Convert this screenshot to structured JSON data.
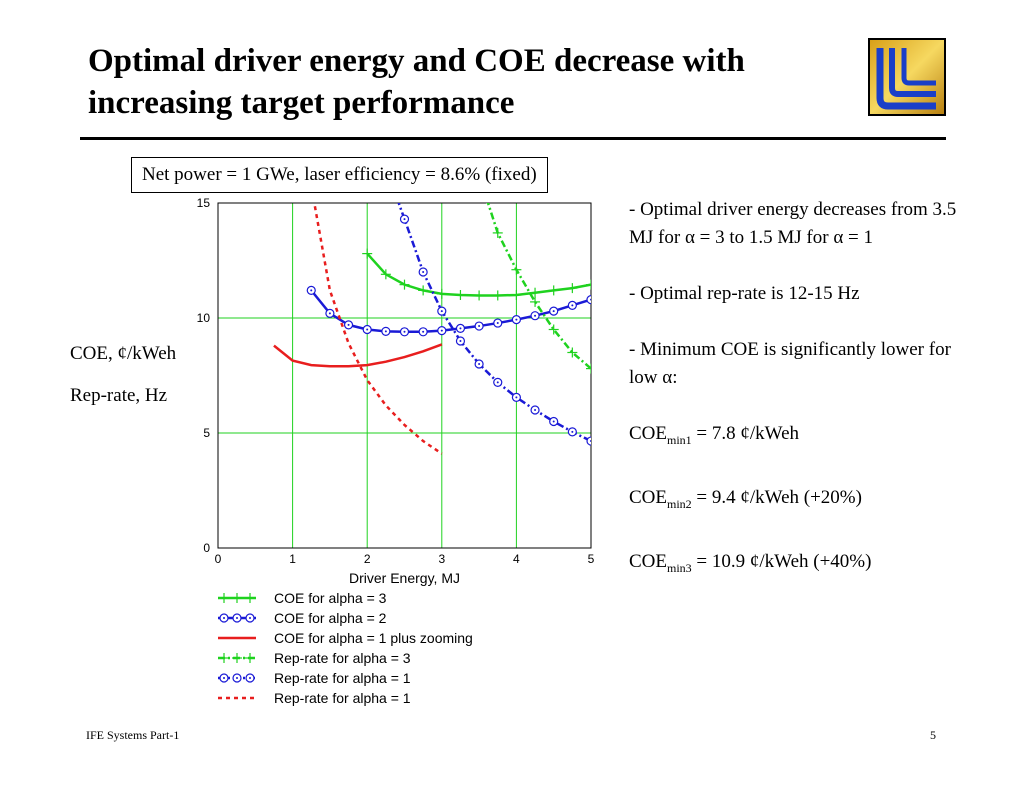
{
  "slide": {
    "title": "Optimal driver energy and COE decrease with increasing target performance",
    "subtitle": "Net power = 1 GWe, laser efficiency = 8.6% (fixed)",
    "ylabel_coe": "COE, ¢/kWeh",
    "ylabel_rep": "Rep-rate, Hz",
    "footer_left": "IFE Systems Part-1",
    "page_number": "5",
    "logo_icon": "llnl-logo-icon",
    "notes": {
      "bullet1": "- Optimal driver energy decreases from 3.5 MJ for α = 3 to 1.5 MJ for α = 1",
      "bullet2": "- Optimal rep-rate is 12-15 Hz",
      "bullet3": "- Minimum COE is significantly lower for low α:",
      "coe1": {
        "label": "COE",
        "sub": "min1",
        "value": " = 7.8 ¢/kWeh"
      },
      "coe2": {
        "label": "COE",
        "sub": "min2",
        "value": " = 9.4 ¢/kWeh (+20%)"
      },
      "coe3": {
        "label": "COE",
        "sub": "min3",
        "value": " = 10.9 ¢/kWeh (+40%)"
      }
    }
  },
  "chart_data": {
    "type": "line",
    "xlabel": "Driver Energy, MJ",
    "ylabel": "",
    "xlim": [
      0,
      5
    ],
    "ylim": [
      0,
      15
    ],
    "xticks": [
      "0",
      "1",
      "2",
      "3",
      "4",
      "5"
    ],
    "yticks": [
      "0",
      "5",
      "10",
      "15"
    ],
    "grid": true,
    "legend_position": "below",
    "series": [
      {
        "name": "COE for alpha = 3",
        "color": "#1fd21f",
        "dash": "solid",
        "marker": "plus",
        "x": [
          2.0,
          2.25,
          2.5,
          2.75,
          3.0,
          3.25,
          3.5,
          3.75,
          4.0,
          4.25,
          4.5,
          4.75,
          5.0
        ],
        "y": [
          12.8,
          11.9,
          11.45,
          11.2,
          11.05,
          11.0,
          10.98,
          10.98,
          11.0,
          11.1,
          11.2,
          11.3,
          11.45
        ]
      },
      {
        "name": "COE for alpha = 2",
        "color": "#1a1ad6",
        "dash": "solid",
        "marker": "circle",
        "x": [
          1.25,
          1.5,
          1.75,
          2.0,
          2.25,
          2.5,
          2.75,
          3.0,
          3.25,
          3.5,
          3.75,
          4.0,
          4.25,
          4.5,
          4.75,
          5.0
        ],
        "y": [
          11.2,
          10.2,
          9.7,
          9.5,
          9.42,
          9.4,
          9.4,
          9.45,
          9.55,
          9.65,
          9.78,
          9.93,
          10.1,
          10.3,
          10.55,
          10.8
        ]
      },
      {
        "name": "COE for alpha = 1 plus zooming",
        "color": "#e81e1e",
        "dash": "solid",
        "marker": "none",
        "x": [
          0.75,
          1.0,
          1.25,
          1.5,
          1.75,
          2.0,
          2.25,
          2.5,
          2.75,
          3.0
        ],
        "y": [
          8.8,
          8.15,
          7.95,
          7.9,
          7.9,
          7.95,
          8.1,
          8.3,
          8.55,
          8.85
        ]
      },
      {
        "name": "Rep-rate for alpha = 3",
        "color": "#1fd21f",
        "dash": "dashdot",
        "marker": "plus",
        "x": [
          3.6,
          3.75,
          4.0,
          4.25,
          4.5,
          4.75,
          5.0
        ],
        "y": [
          15.2,
          13.7,
          12.1,
          10.7,
          9.5,
          8.5,
          7.8
        ]
      },
      {
        "name": "Rep-rate for alpha = 1",
        "color": "#1a1ad6",
        "dash": "dashdot",
        "marker": "circle",
        "x": [
          2.4,
          2.5,
          2.75,
          3.0,
          3.25,
          3.5,
          3.75,
          4.0,
          4.25,
          4.5,
          4.75,
          5.0
        ],
        "y": [
          15.2,
          14.3,
          12.0,
          10.3,
          9.0,
          8.0,
          7.2,
          6.55,
          6.0,
          5.5,
          5.05,
          4.65
        ]
      },
      {
        "name": "Rep-rate for alpha = 1",
        "color": "#e81e1e",
        "dash": "dotted",
        "marker": "none",
        "x": [
          1.28,
          1.5,
          1.75,
          2.0,
          2.25,
          2.5,
          2.75,
          3.0
        ],
        "y": [
          15.2,
          11.2,
          8.9,
          7.3,
          6.2,
          5.35,
          4.65,
          4.1
        ]
      }
    ]
  }
}
